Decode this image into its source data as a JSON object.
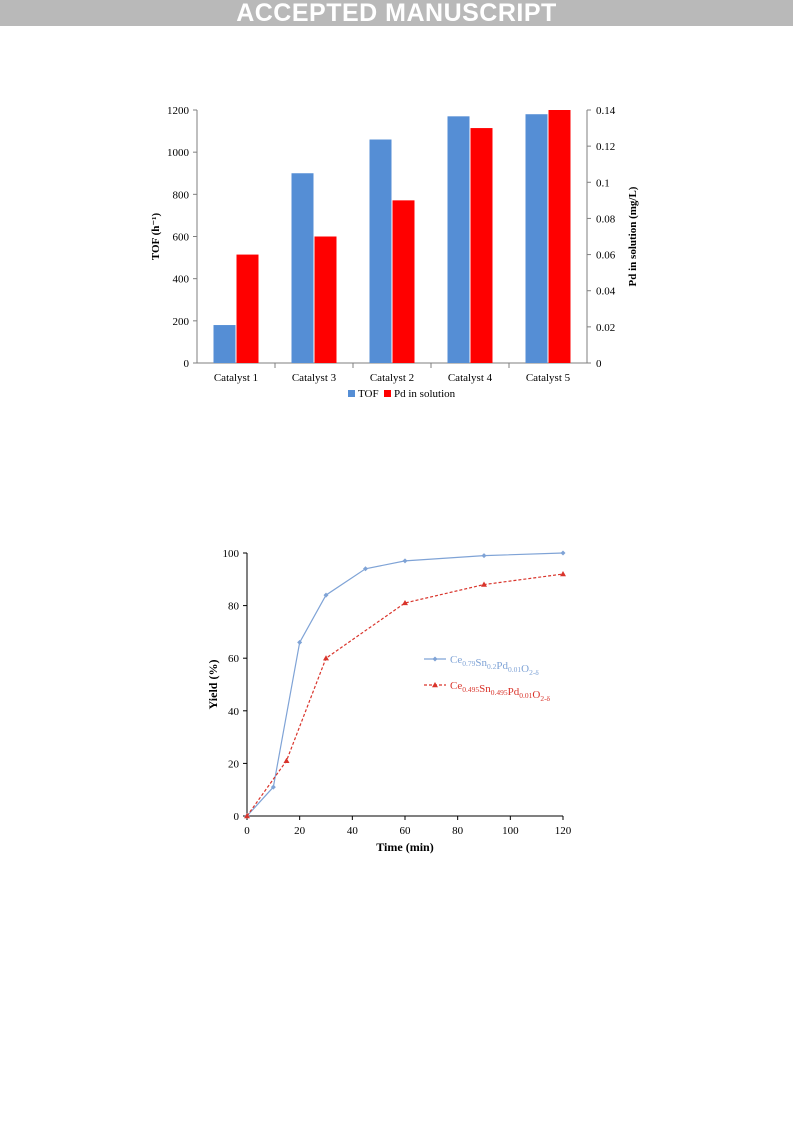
{
  "header": {
    "banner": "ACCEPTED MANUSCRIPT"
  },
  "chart_data": [
    {
      "type": "bar",
      "categories": [
        "Catalyst 1",
        "Catalyst 3",
        "Catalyst 2",
        "Catalyst 4",
        "Catalyst 5"
      ],
      "series": [
        {
          "name": "TOF",
          "axis": "left",
          "color": "#558ed5",
          "values": [
            180,
            900,
            1060,
            1170,
            1180
          ]
        },
        {
          "name": "Pd in solution",
          "axis": "right",
          "color": "#ff0000",
          "values": [
            0.06,
            0.07,
            0.09,
            0.13,
            0.14
          ]
        }
      ],
      "ylabel": "TOF (h⁻¹)",
      "y2label": "Pd in solution  (mg/L)",
      "ylim": [
        0,
        1200
      ],
      "y2lim": [
        0,
        0.14
      ],
      "yticks": [
        "0",
        "200",
        "400",
        "600",
        "800",
        "1000",
        "1200"
      ],
      "y2ticks": [
        "0",
        "0.02",
        "0.04",
        "0.06",
        "0.08",
        "0.1",
        "0.12",
        "0.14"
      ],
      "legend": "bottom"
    },
    {
      "type": "line",
      "xlabel": "Time (min)",
      "ylabel": "Yield (%)",
      "xlim": [
        0,
        120
      ],
      "ylim": [
        0,
        100
      ],
      "xticks": [
        "0",
        "20",
        "40",
        "60",
        "80",
        "100",
        "120"
      ],
      "yticks": [
        "0",
        "20",
        "40",
        "60",
        "80",
        "100"
      ],
      "legend": "right",
      "series": [
        {
          "name": "Ce0.79Sn0.2Pd0.01O2-δ",
          "name_parts": {
            "a": "Ce",
            "a_sub": "0.79",
            "b": "Sn",
            "b_sub": "0.2",
            "c": "Pd",
            "c_sub": "0.01",
            "d": "O",
            "d_sub": "2-δ"
          },
          "color": "#7fa3d6",
          "style": "solid",
          "marker": "diamond",
          "x": [
            0,
            10,
            20,
            30,
            45,
            60,
            90,
            120
          ],
          "y": [
            0,
            11,
            66,
            84,
            94,
            97,
            99,
            100
          ]
        },
        {
          "name": "Ce0.495Sn0.495Pd0.01O2-δ",
          "name_parts": {
            "a": "Ce",
            "a_sub": "0.495",
            "b": "Sn",
            "b_sub": "0.495",
            "c": "Pd",
            "c_sub": "0.01",
            "d": "O",
            "d_sub": "2-δ"
          },
          "color": "#d9342b",
          "style": "dashed",
          "marker": "triangle",
          "x": [
            0,
            15,
            30,
            60,
            90,
            120
          ],
          "y": [
            0,
            21,
            60,
            81,
            88,
            92
          ]
        }
      ]
    }
  ]
}
